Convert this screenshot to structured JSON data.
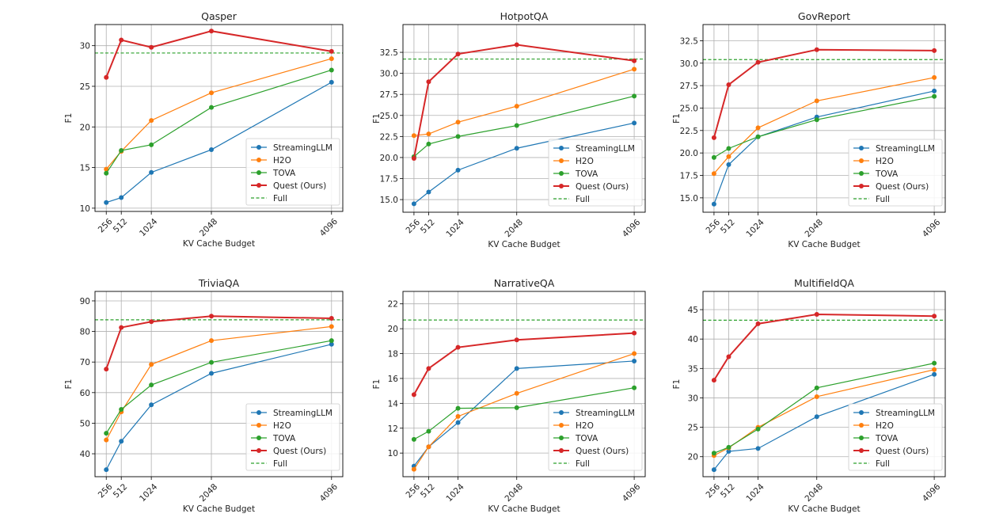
{
  "chart_data": [
    {
      "type": "line",
      "title": "Qasper",
      "xlabel": "KV Cache Budget",
      "ylabel": "F1",
      "x": [
        256,
        512,
        1024,
        2048,
        4096
      ],
      "xticks": [
        "256",
        "512",
        "1024",
        "2048",
        "4096"
      ],
      "ylim": [
        9.6,
        32.6
      ],
      "yticks": [
        "10",
        "15",
        "20",
        "25",
        "30"
      ],
      "grid": true,
      "legend": "lower-right",
      "series": [
        {
          "name": "StreamingLLM",
          "values": [
            10.7,
            11.3,
            14.4,
            17.2,
            25.5
          ]
        },
        {
          "name": "H2O",
          "values": [
            14.8,
            17.0,
            20.8,
            24.2,
            28.4
          ]
        },
        {
          "name": "TOVA",
          "values": [
            14.3,
            17.1,
            17.8,
            22.4,
            27.0
          ]
        },
        {
          "name": "Quest (Ours)",
          "values": [
            26.1,
            30.7,
            29.8,
            31.8,
            29.3
          ]
        }
      ],
      "full": {
        "name": "Full",
        "value": 29.1
      }
    },
    {
      "type": "line",
      "title": "HotpotQA",
      "xlabel": "KV Cache Budget",
      "ylabel": "F1",
      "x": [
        256,
        512,
        1024,
        2048,
        4096
      ],
      "xticks": [
        "256",
        "512",
        "1024",
        "2048",
        "4096"
      ],
      "ylim": [
        13.5,
        35.8
      ],
      "yticks": [
        "15.0",
        "17.5",
        "20.0",
        "22.5",
        "25.0",
        "27.5",
        "30.0",
        "32.5"
      ],
      "grid": true,
      "legend": "lower-right",
      "series": [
        {
          "name": "StreamingLLM",
          "values": [
            14.5,
            15.9,
            18.5,
            21.1,
            24.1
          ]
        },
        {
          "name": "H2O",
          "values": [
            22.6,
            22.8,
            24.2,
            26.1,
            30.5
          ]
        },
        {
          "name": "TOVA",
          "values": [
            20.1,
            21.6,
            22.5,
            23.8,
            27.3
          ]
        },
        {
          "name": "Quest (Ours)",
          "values": [
            19.9,
            29.0,
            32.3,
            33.4,
            31.5
          ]
        }
      ],
      "full": {
        "name": "Full",
        "value": 31.7
      }
    },
    {
      "type": "line",
      "title": "GovReport",
      "xlabel": "KV Cache Budget",
      "ylabel": "F1",
      "x": [
        256,
        512,
        1024,
        2048,
        4096
      ],
      "xticks": [
        "256",
        "512",
        "1024",
        "2048",
        "4096"
      ],
      "ylim": [
        13.4,
        34.3
      ],
      "yticks": [
        "15.0",
        "17.5",
        "20.0",
        "22.5",
        "25.0",
        "27.5",
        "30.0",
        "32.5"
      ],
      "grid": true,
      "legend": "lower-right",
      "series": [
        {
          "name": "StreamingLLM",
          "values": [
            14.3,
            18.7,
            21.8,
            24.0,
            26.9
          ]
        },
        {
          "name": "H2O",
          "values": [
            17.7,
            19.6,
            22.8,
            25.8,
            28.4
          ]
        },
        {
          "name": "TOVA",
          "values": [
            19.5,
            20.5,
            21.8,
            23.7,
            26.3
          ]
        },
        {
          "name": "Quest (Ours)",
          "values": [
            21.7,
            27.6,
            30.1,
            31.5,
            31.4
          ]
        }
      ],
      "full": {
        "name": "Full",
        "value": 30.4
      }
    },
    {
      "type": "line",
      "title": "TriviaQA",
      "xlabel": "KV Cache Budget",
      "ylabel": "F1",
      "x": [
        256,
        512,
        1024,
        2048,
        4096
      ],
      "xticks": [
        "256",
        "512",
        "1024",
        "2048",
        "4096"
      ],
      "ylim": [
        32.5,
        93.1
      ],
      "yticks": [
        "40",
        "50",
        "60",
        "70",
        "80",
        "90"
      ],
      "grid": true,
      "legend": "lower-right",
      "series": [
        {
          "name": "StreamingLLM",
          "values": [
            34.8,
            44.1,
            56.0,
            66.3,
            75.8
          ]
        },
        {
          "name": "H2O",
          "values": [
            44.5,
            53.7,
            69.2,
            77.0,
            81.6
          ]
        },
        {
          "name": "TOVA",
          "values": [
            46.7,
            54.5,
            62.5,
            69.9,
            77.0
          ]
        },
        {
          "name": "Quest (Ours)",
          "values": [
            67.7,
            81.3,
            83.2,
            85.0,
            84.3
          ]
        }
      ],
      "full": {
        "name": "Full",
        "value": 83.8
      }
    },
    {
      "type": "line",
      "title": "NarrativeQA",
      "xlabel": "KV Cache Budget",
      "ylabel": "F1",
      "x": [
        256,
        512,
        1024,
        2048,
        4096
      ],
      "xticks": [
        "256",
        "512",
        "1024",
        "2048",
        "4096"
      ],
      "ylim": [
        8.1,
        23.0
      ],
      "yticks": [
        "10",
        "12",
        "14",
        "16",
        "18",
        "20",
        "22"
      ],
      "grid": true,
      "legend": "lower-right",
      "series": [
        {
          "name": "StreamingLLM",
          "values": [
            8.95,
            10.5,
            12.45,
            16.8,
            17.4
          ]
        },
        {
          "name": "H2O",
          "values": [
            8.7,
            10.5,
            12.95,
            14.8,
            18.0
          ]
        },
        {
          "name": "TOVA",
          "values": [
            11.1,
            11.75,
            13.6,
            13.65,
            15.25
          ]
        },
        {
          "name": "Quest (Ours)",
          "values": [
            14.7,
            16.8,
            18.5,
            19.1,
            19.65
          ]
        }
      ],
      "full": {
        "name": "Full",
        "value": 20.7
      }
    },
    {
      "type": "line",
      "title": "MultifieldQA",
      "xlabel": "KV Cache Budget",
      "ylabel": "F1",
      "x": [
        256,
        512,
        1024,
        2048,
        4096
      ],
      "xticks": [
        "256",
        "512",
        "1024",
        "2048",
        "4096"
      ],
      "ylim": [
        16.6,
        48.1
      ],
      "yticks": [
        "20",
        "25",
        "30",
        "35",
        "40",
        "45"
      ],
      "grid": true,
      "legend": "lower-right",
      "series": [
        {
          "name": "StreamingLLM",
          "values": [
            17.8,
            20.9,
            21.4,
            26.8,
            34.0
          ]
        },
        {
          "name": "H2O",
          "values": [
            20.2,
            21.5,
            25.0,
            30.2,
            34.8
          ]
        },
        {
          "name": "TOVA",
          "values": [
            20.6,
            21.6,
            24.7,
            31.7,
            35.9
          ]
        },
        {
          "name": "Quest (Ours)",
          "values": [
            33.0,
            37.0,
            42.6,
            44.2,
            43.9
          ]
        }
      ],
      "full": {
        "name": "Full",
        "value": 43.2
      }
    }
  ],
  "colors": {
    "StreamingLLM": "#1f77b4",
    "H2O": "#ff7f0e",
    "TOVA": "#2ca02c",
    "Quest (Ours)": "#d62728",
    "Full": "#2ca02c"
  },
  "xlim": [
    64,
    4288
  ]
}
